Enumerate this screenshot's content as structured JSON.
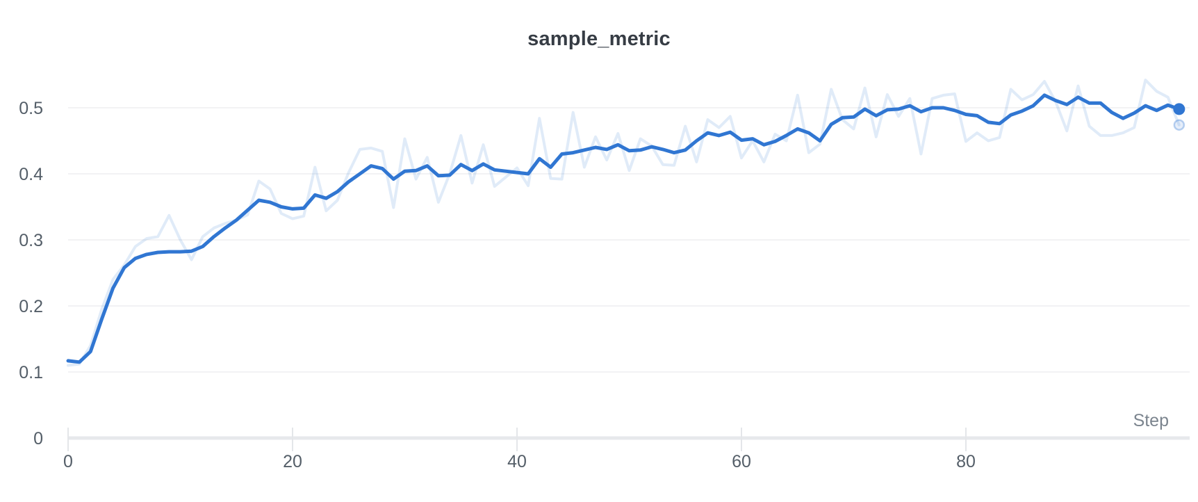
{
  "page": {
    "background": "#ffffff"
  },
  "chart_data": {
    "type": "line",
    "title": "sample_metric",
    "xlabel": "Step",
    "ylabel": "",
    "x_ticks": [
      0,
      20,
      40,
      60,
      80
    ],
    "y_ticks": [
      0,
      0.1,
      0.2,
      0.3,
      0.4,
      0.5
    ],
    "xlim": [
      0,
      99
    ],
    "ylim": [
      0,
      0.55
    ],
    "x": {
      "start": 0,
      "end": 99,
      "step": 1
    },
    "grid": "horizontal-only",
    "legend": "none",
    "colors": {
      "accent": "#3076d2",
      "gridline": "#e9ebee",
      "axis_bar": "#e7e9ec",
      "tick_mark": "#e4e6e9",
      "title_color": "#363c44",
      "tick_label": "#545e68",
      "axis_label": "#7b848e"
    },
    "series": [
      {
        "name": "sample_metric (original)",
        "role": "raw",
        "color": "#3076d2",
        "opacity": 0.15,
        "endpoint_marker": "faded-ring",
        "values": [
          0.11,
          0.112,
          0.14,
          0.195,
          0.24,
          0.262,
          0.29,
          0.302,
          0.305,
          0.337,
          0.3,
          0.27,
          0.305,
          0.318,
          0.325,
          0.33,
          0.338,
          0.389,
          0.377,
          0.34,
          0.332,
          0.336,
          0.41,
          0.344,
          0.36,
          0.402,
          0.437,
          0.439,
          0.434,
          0.349,
          0.453,
          0.392,
          0.425,
          0.357,
          0.4,
          0.458,
          0.386,
          0.444,
          0.381,
          0.395,
          0.409,
          0.382,
          0.484,
          0.393,
          0.392,
          0.493,
          0.41,
          0.456,
          0.421,
          0.461,
          0.405,
          0.453,
          0.442,
          0.414,
          0.413,
          0.472,
          0.418,
          0.482,
          0.47,
          0.487,
          0.424,
          0.45,
          0.418,
          0.46,
          0.45,
          0.519,
          0.432,
          0.445,
          0.528,
          0.482,
          0.468,
          0.53,
          0.456,
          0.52,
          0.487,
          0.514,
          0.43,
          0.514,
          0.519,
          0.521,
          0.449,
          0.462,
          0.45,
          0.455,
          0.528,
          0.512,
          0.52,
          0.54,
          0.509,
          0.465,
          0.533,
          0.472,
          0.458,
          0.458,
          0.462,
          0.47,
          0.542,
          0.525,
          0.516,
          0.474
        ]
      },
      {
        "name": "sample_metric (smoothed)",
        "role": "smoothed",
        "color": "#3076d2",
        "opacity": 1,
        "endpoint_marker": "solid-dot",
        "values": [
          0.117,
          0.115,
          0.131,
          0.18,
          0.227,
          0.258,
          0.272,
          0.278,
          0.281,
          0.282,
          0.282,
          0.283,
          0.29,
          0.305,
          0.318,
          0.33,
          0.345,
          0.36,
          0.357,
          0.35,
          0.347,
          0.348,
          0.368,
          0.363,
          0.373,
          0.388,
          0.4,
          0.412,
          0.408,
          0.392,
          0.404,
          0.405,
          0.412,
          0.397,
          0.398,
          0.414,
          0.405,
          0.415,
          0.406,
          0.404,
          0.402,
          0.4,
          0.423,
          0.41,
          0.43,
          0.432,
          0.436,
          0.44,
          0.437,
          0.444,
          0.435,
          0.436,
          0.441,
          0.437,
          0.432,
          0.436,
          0.45,
          0.462,
          0.458,
          0.463,
          0.451,
          0.453,
          0.444,
          0.449,
          0.458,
          0.468,
          0.462,
          0.45,
          0.475,
          0.485,
          0.486,
          0.498,
          0.488,
          0.497,
          0.498,
          0.503,
          0.494,
          0.5,
          0.5,
          0.496,
          0.49,
          0.488,
          0.478,
          0.476,
          0.489,
          0.495,
          0.503,
          0.519,
          0.511,
          0.505,
          0.516,
          0.507,
          0.507,
          0.493,
          0.484,
          0.492,
          0.503,
          0.496,
          0.504,
          0.498
        ]
      }
    ]
  }
}
